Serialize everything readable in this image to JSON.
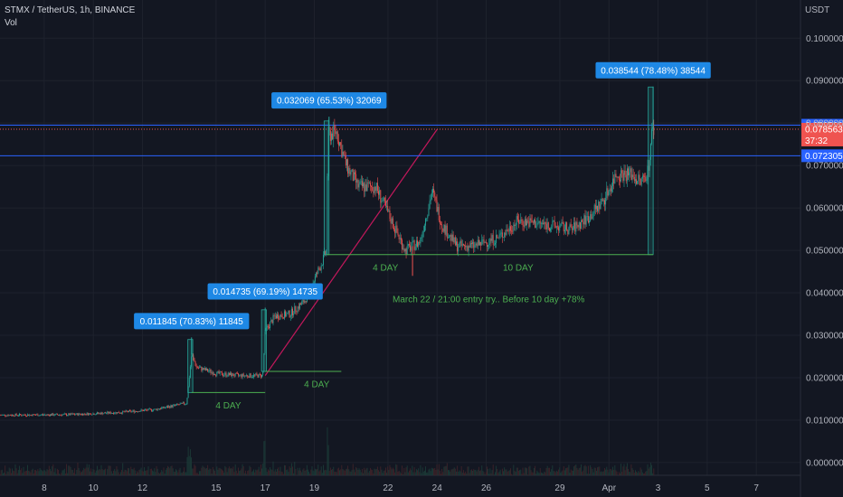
{
  "header": {
    "symbol": "STMX / TetherUS, 1h, BINANCE",
    "volume_label": "Vol",
    "currency": "USDT"
  },
  "colors": {
    "background": "#131722",
    "up": "#26a69a",
    "down": "#ef5350",
    "level_line": "#2962ff",
    "trend_line": "#c2185b",
    "annotation_text": "#4caf50",
    "range_line": "#4caf50",
    "callout": "#1e88e5"
  },
  "chart_data": {
    "type": "candlestick",
    "ylim": [
      -0.003,
      0.109
    ],
    "y_ticks": [
      {
        "value": 0.0,
        "label": "0.000000"
      },
      {
        "value": 0.01,
        "label": "0.010000"
      },
      {
        "value": 0.02,
        "label": "0.020000"
      },
      {
        "value": 0.03,
        "label": "0.030000"
      },
      {
        "value": 0.04,
        "label": "0.040000"
      },
      {
        "value": 0.05,
        "label": "0.050000"
      },
      {
        "value": 0.06,
        "label": "0.060000"
      },
      {
        "value": 0.07,
        "label": "0.070000"
      },
      {
        "value": 0.08,
        "label": "0.080000"
      },
      {
        "value": 0.09,
        "label": "0.090000"
      },
      {
        "value": 0.1,
        "label": "0.100000"
      }
    ],
    "x_ticks": [
      {
        "day": 8,
        "label": "8"
      },
      {
        "day": 10,
        "label": "10"
      },
      {
        "day": 12,
        "label": "12"
      },
      {
        "day": 15,
        "label": "15"
      },
      {
        "day": 17,
        "label": "17"
      },
      {
        "day": 19,
        "label": "19"
      },
      {
        "day": 22,
        "label": "22"
      },
      {
        "day": 24,
        "label": "24"
      },
      {
        "day": 26,
        "label": "26"
      },
      {
        "day": 29,
        "label": "29"
      },
      {
        "day": 31,
        "label": "Apr"
      },
      {
        "day": 33,
        "label": "3"
      },
      {
        "day": 35,
        "label": "5"
      },
      {
        "day": 37,
        "label": "7"
      }
    ],
    "price_path": [
      [
        6.2,
        0.0112
      ],
      [
        9,
        0.0113
      ],
      [
        11,
        0.0118
      ],
      [
        12.5,
        0.0125
      ],
      [
        13.8,
        0.014
      ],
      [
        14.0,
        0.0255
      ],
      [
        14.2,
        0.0225
      ],
      [
        15.0,
        0.021
      ],
      [
        16.0,
        0.0205
      ],
      [
        16.9,
        0.0205
      ],
      [
        17.0,
        0.031
      ],
      [
        17.4,
        0.0345
      ],
      [
        18.0,
        0.035
      ],
      [
        18.6,
        0.038
      ],
      [
        19.3,
        0.047
      ],
      [
        19.5,
        0.05
      ],
      [
        19.55,
        0.077
      ],
      [
        19.9,
        0.078
      ],
      [
        20.3,
        0.07
      ],
      [
        20.8,
        0.065
      ],
      [
        21.5,
        0.065
      ],
      [
        22.3,
        0.055
      ],
      [
        22.7,
        0.05
      ],
      [
        23.3,
        0.052
      ],
      [
        23.8,
        0.064
      ],
      [
        24.2,
        0.056
      ],
      [
        24.8,
        0.051
      ],
      [
        25.5,
        0.051
      ],
      [
        26.5,
        0.053
      ],
      [
        27.3,
        0.057
      ],
      [
        28.5,
        0.056
      ],
      [
        29.5,
        0.055
      ],
      [
        30.2,
        0.058
      ],
      [
        30.8,
        0.062
      ],
      [
        31.3,
        0.068
      ],
      [
        31.9,
        0.068
      ],
      [
        32.3,
        0.066
      ],
      [
        32.6,
        0.069
      ],
      [
        32.75,
        0.078
      ],
      [
        32.85,
        0.0786
      ]
    ],
    "spikes": [
      {
        "day": 14.0,
        "high": 0.0295
      },
      {
        "day": 17.0,
        "high": 0.0365
      },
      {
        "day": 19.6,
        "high": 0.0815
      },
      {
        "day": 32.8,
        "high": 0.0886
      },
      {
        "day": 23.0,
        "low": 0.044
      }
    ],
    "h_lines": [
      {
        "value": 0.0795,
        "label": "0.079500"
      },
      {
        "value": 0.072305,
        "label": "0.072305"
      }
    ],
    "current_price": {
      "value": 0.078563,
      "label": "0.078563",
      "countdown": "37:32"
    },
    "callouts": [
      {
        "text": "0.011845 (70.83%) 11845",
        "day": 14.0,
        "value": 0.0295
      },
      {
        "text": "0.014735 (69.19%) 14735",
        "day": 17.0,
        "value": 0.0365
      },
      {
        "text": "0.032069 (65.53%) 32069",
        "day": 19.6,
        "value": 0.0815
      },
      {
        "text": "0.038544 (78.48%) 38544",
        "day": 32.8,
        "value": 0.0886
      }
    ],
    "measure_boxes": [
      {
        "day_start": 13.85,
        "day_end": 14.05,
        "low": 0.0165,
        "high": 0.029
      },
      {
        "day_start": 16.85,
        "day_end": 17.05,
        "low": 0.0215,
        "high": 0.036
      },
      {
        "day_start": 19.4,
        "day_end": 19.6,
        "low": 0.049,
        "high": 0.0805
      },
      {
        "day_start": 32.6,
        "day_end": 32.8,
        "low": 0.049,
        "high": 0.0885
      }
    ],
    "ranges": [
      {
        "day_start": 14.0,
        "day_end": 17.0,
        "value": 0.0165,
        "label": "4 DAY",
        "label_day": 15.5,
        "label_value": 0.0135
      },
      {
        "day_start": 17.0,
        "day_end": 20.1,
        "value": 0.0215,
        "label": "4 DAY",
        "label_day": 19.1,
        "label_value": 0.0185
      },
      {
        "day_start": 19.5,
        "day_end": 22.6,
        "value": 0.049,
        "label": "4 DAY",
        "label_day": 21.9,
        "label_value": 0.046
      },
      {
        "day_start": 22.6,
        "day_end": 32.8,
        "value": 0.049,
        "label": "10 DAY",
        "label_day": 27.3,
        "label_value": 0.046
      }
    ],
    "trend_line": {
      "from": [
        17.0,
        0.0205
      ],
      "to": [
        24.0,
        0.0785
      ]
    },
    "annotation": {
      "text": "March 22 / 21:00 entry try.. Before 10 day +78%",
      "day": 26.1,
      "value": 0.0385
    }
  }
}
